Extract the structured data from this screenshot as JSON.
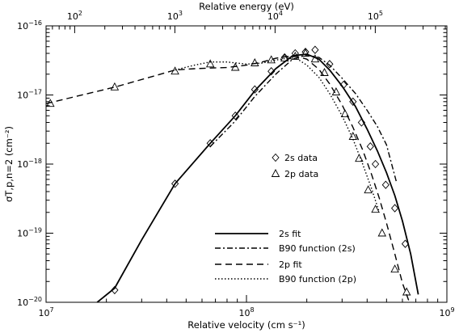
{
  "chart_data": {
    "type": "line",
    "xlabel": "Relative velocity (cm s⁻¹)",
    "ylabel": "σT,p,n=2 (cm⁻²)",
    "top_xlabel": "Relative energy (eV)",
    "x_scale": "log",
    "y_scale": "log",
    "xlim": [
      10000000.0,
      1000000000.0
    ],
    "ylim": [
      1e-20,
      1e-16
    ],
    "grid": false,
    "x_ticks": [
      {
        "value": 10000000.0,
        "label": "10",
        "exp": "7"
      },
      {
        "value": 100000000.0,
        "label": "10",
        "exp": "8"
      },
      {
        "value": 1000000000.0,
        "label": "10",
        "exp": "9"
      }
    ],
    "y_ticks": [
      {
        "value": 1e-20,
        "label": "10",
        "exp": "−20"
      },
      {
        "value": 1e-19,
        "label": "10",
        "exp": "−19"
      },
      {
        "value": 1e-18,
        "label": "10",
        "exp": "−18"
      },
      {
        "value": 1e-17,
        "label": "10",
        "exp": "−17"
      },
      {
        "value": 1e-16,
        "label": "10",
        "exp": "−16"
      }
    ],
    "top_ticks": [
      {
        "energy": 100,
        "label": "10",
        "exp": "2"
      },
      {
        "energy": 1000,
        "label": "10",
        "exp": "3"
      },
      {
        "energy": 10000,
        "label": "10",
        "exp": "4"
      },
      {
        "energy": 100000,
        "label": "10",
        "exp": "5"
      }
    ],
    "series": [
      {
        "name": "2s data",
        "kind": "markers",
        "marker": "diamond",
        "x": [
          22000000.0,
          44000000.0,
          66000000.0,
          88000000.0,
          110000000.0,
          133000000.0,
          155000000.0,
          175000000.0,
          197000000.0,
          220000000.0,
          260000000.0,
          305000000.0,
          340000000.0,
          375000000.0,
          415000000.0,
          440000000.0,
          495000000.0,
          550000000.0,
          620000000.0
        ],
        "y": [
          1.5e-20,
          5.2e-19,
          2e-18,
          5e-18,
          1.2e-17,
          2.2e-17,
          3.5e-17,
          4e-17,
          4.2e-17,
          4.5e-17,
          2.8e-17,
          1.4e-17,
          8e-18,
          4e-18,
          1.8e-18,
          1e-18,
          5e-19,
          2.3e-19,
          7e-20
        ]
      },
      {
        "name": "2p data",
        "kind": "markers",
        "marker": "triangle",
        "x": [
          10500000.0,
          22000000.0,
          44000000.0,
          66000000.0,
          88000000.0,
          110000000.0,
          133000000.0,
          155000000.0,
          175000000.0,
          197000000.0,
          220000000.0,
          245000000.0,
          280000000.0,
          310000000.0,
          340000000.0,
          365000000.0,
          405000000.0,
          440000000.0,
          475000000.0,
          550000000.0,
          630000000.0
        ],
        "y": [
          7.5e-18,
          1.3e-17,
          2.2e-17,
          2.8e-17,
          2.5e-17,
          2.9e-17,
          3.2e-17,
          3.4e-17,
          3.6e-17,
          4e-17,
          3.3e-17,
          2.1e-17,
          1.1e-17,
          5.3e-18,
          2.5e-18,
          1.2e-18,
          4.2e-19,
          2.2e-19,
          1e-19,
          3e-20,
          1.4e-20
        ]
      },
      {
        "name": "2s fit",
        "kind": "line",
        "style": "solid",
        "x": [
          18000000.0,
          22000000.0,
          30000000.0,
          44000000.0,
          66000000.0,
          88000000.0,
          110000000.0,
          140000000.0,
          170000000.0,
          200000000.0,
          230000000.0,
          260000000.0,
          300000000.0,
          350000000.0,
          400000000.0,
          450000000.0,
          500000000.0,
          550000000.0,
          600000000.0,
          660000000.0,
          720000000.0
        ],
        "y": [
          1e-20,
          1.6e-20,
          8e-20,
          5.2e-19,
          2e-18,
          5e-18,
          1.15e-17,
          2.4e-17,
          3.7e-17,
          3.9e-17,
          3.3e-17,
          2.3e-17,
          1.35e-17,
          6.8e-18,
          3.2e-18,
          1.55e-18,
          7.5e-19,
          3.5e-19,
          1.5e-19,
          5e-20,
          1.3e-20
        ]
      },
      {
        "name": "B90 function (2s)",
        "kind": "line",
        "style": "dashdot",
        "x": [
          66000000.0,
          88000000.0,
          110000000.0,
          140000000.0,
          170000000.0,
          200000000.0,
          230000000.0,
          260000000.0,
          300000000.0,
          350000000.0,
          400000000.0,
          450000000.0,
          500000000.0,
          560000000.0
        ],
        "y": [
          1.8e-18,
          4.2e-18,
          9.5e-18,
          2e-17,
          3.3e-17,
          3.8e-17,
          3.5e-17,
          2.7e-17,
          1.75e-17,
          1.05e-17,
          6e-18,
          3.5e-18,
          1.9e-18,
          5.5e-19
        ]
      },
      {
        "name": "2p fit",
        "kind": "line",
        "style": "dashed",
        "x": [
          10000000.0,
          22000000.0,
          35000000.0,
          44000000.0,
          55000000.0,
          66000000.0,
          80000000.0,
          100000000.0,
          120000000.0,
          140000000.0,
          160000000.0,
          180000000.0,
          200000000.0,
          230000000.0,
          260000000.0,
          300000000.0,
          340000000.0,
          380000000.0,
          420000000.0,
          460000000.0,
          500000000.0,
          550000000.0,
          600000000.0,
          650000000.0
        ],
        "y": [
          7.5e-18,
          1.3e-17,
          1.9e-17,
          2.3e-17,
          2.4e-17,
          2.45e-17,
          2.5e-17,
          2.7e-17,
          3e-17,
          3.4e-17,
          3.6e-17,
          3.6e-17,
          3.3e-17,
          2.35e-17,
          1.45e-17,
          7.2e-18,
          3.4e-18,
          1.6e-18,
          7.2e-19,
          3.2e-19,
          1.4e-19,
          5e-20,
          1.9e-20,
          1e-20
        ]
      },
      {
        "name": "B90 function (2p)",
        "kind": "line",
        "style": "dotted",
        "x": [
          44000000.0,
          55000000.0,
          66000000.0,
          80000000.0,
          100000000.0,
          120000000.0,
          140000000.0,
          160000000.0,
          180000000.0,
          200000000.0,
          230000000.0,
          260000000.0,
          300000000.0,
          340000000.0,
          380000000.0,
          420000000.0,
          460000000.0
        ],
        "y": [
          2.3e-17,
          2.7e-17,
          3e-17,
          3e-17,
          2.8e-17,
          2.9e-17,
          3.2e-17,
          3.4e-17,
          3.3e-17,
          2.7e-17,
          1.8e-17,
          1.05e-17,
          5e-18,
          2.3e-18,
          1e-18,
          4.5e-19,
          2e-19
        ]
      }
    ],
    "legend_markers": [
      {
        "marker": "diamond",
        "label": "2s data"
      },
      {
        "marker": "triangle",
        "label": "2p data"
      }
    ],
    "legend_lines": [
      {
        "style": "solid",
        "label": "2s fit"
      },
      {
        "style": "dashdot",
        "label": "B90 function (2s)"
      },
      {
        "style": "dashed",
        "label": "2p fit"
      },
      {
        "style": "dotted",
        "label": "B90 function (2p)"
      }
    ]
  }
}
